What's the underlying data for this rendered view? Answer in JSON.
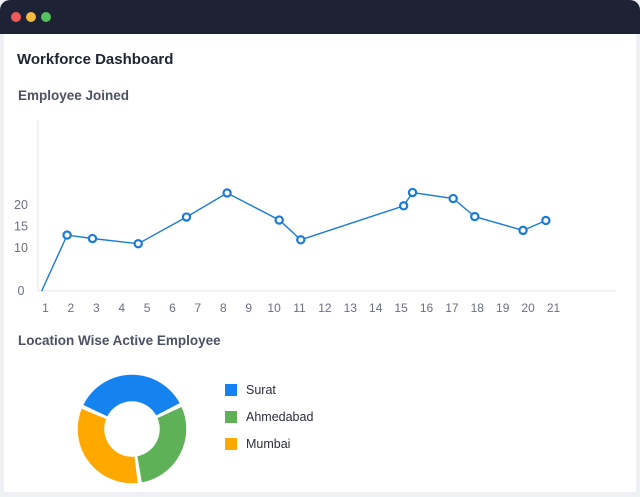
{
  "window": {
    "controls": [
      {
        "name": "close",
        "color": "#ee5a5a"
      },
      {
        "name": "minimize",
        "color": "#f4b93e"
      },
      {
        "name": "maximize",
        "color": "#56c15f"
      }
    ]
  },
  "page": {
    "title": "Workforce Dashboard"
  },
  "line_section": {
    "title": "Employee Joined"
  },
  "donut_section": {
    "title": "Location Wise Active Employee"
  },
  "chart_data": [
    {
      "type": "line",
      "title": "Employee Joined",
      "color": "#1a7bd6",
      "x_ticks": [
        1,
        2,
        3,
        4,
        5,
        6,
        7,
        8,
        9,
        10,
        11,
        12,
        13,
        14,
        15,
        16,
        17,
        18,
        19,
        20,
        21
      ],
      "y_ticks": [
        0,
        10,
        15,
        20
      ],
      "ylim": [
        0,
        24.5
      ],
      "points": [
        {
          "x": 0.85,
          "y": 0
        },
        {
          "x": 1.85,
          "y": 13
        },
        {
          "x": 2.85,
          "y": 12.2
        },
        {
          "x": 4.65,
          "y": 11
        },
        {
          "x": 6.55,
          "y": 17.2
        },
        {
          "x": 8.15,
          "y": 22.8
        },
        {
          "x": 10.2,
          "y": 16.5
        },
        {
          "x": 11.05,
          "y": 11.9
        },
        {
          "x": 15.1,
          "y": 19.8
        },
        {
          "x": 15.45,
          "y": 22.9
        },
        {
          "x": 17.05,
          "y": 21.5
        },
        {
          "x": 17.9,
          "y": 17.3
        },
        {
          "x": 19.8,
          "y": 14.1
        },
        {
          "x": 20.7,
          "y": 16.4
        }
      ],
      "grid": false
    },
    {
      "type": "pie",
      "title": "Location Wise Active Employee",
      "donut": true,
      "slices": [
        {
          "label": "Surat",
          "value": 36,
          "color": "#1483ef"
        },
        {
          "label": "Ahmedabad",
          "value": 30,
          "color": "#5fb157"
        },
        {
          "label": "Mumbai",
          "value": 34,
          "color": "#ffa800"
        }
      ],
      "legend": "right"
    }
  ]
}
